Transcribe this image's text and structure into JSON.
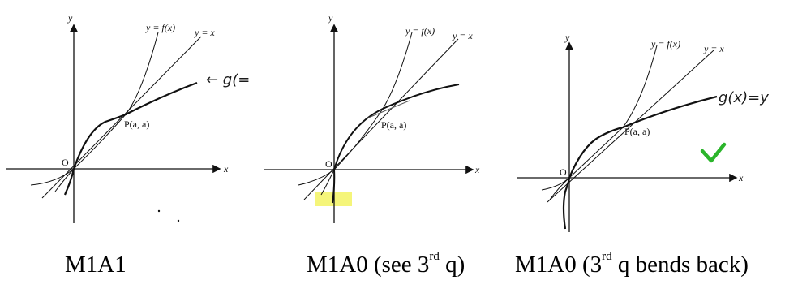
{
  "panels": [
    {
      "labels": {
        "y_axis": "y",
        "x_axis": "x",
        "origin": "O",
        "point": "P(a, a)",
        "curve_f": "y = f(x)",
        "curve_x": "y = x",
        "handwritten": "← g(="
      },
      "caption": {
        "pre": "M1A1",
        "sup": "",
        "post": ""
      }
    },
    {
      "labels": {
        "y_axis": "y",
        "x_axis": "x",
        "origin": "O",
        "point": "P(a, a)",
        "curve_f": "y = f(x)",
        "curve_x": "y = x"
      },
      "caption": {
        "pre": "M1A0 (see 3",
        "sup": "rd",
        "post": " q)"
      }
    },
    {
      "labels": {
        "y_axis": "y",
        "x_axis": "x",
        "origin": "O",
        "point": "P(a, a)",
        "curve_f": "y = f(x)",
        "curve_x": "y = x",
        "handwritten": "g(x)=y"
      },
      "caption": {
        "pre": "M1A0 (3",
        "sup": "rd",
        "post": " q bends back)"
      }
    }
  ],
  "colors": {
    "highlight": "#f5f57a",
    "check": "#2bb52b",
    "ink": "#111111"
  },
  "icons": {
    "check": "check-mark-icon"
  }
}
